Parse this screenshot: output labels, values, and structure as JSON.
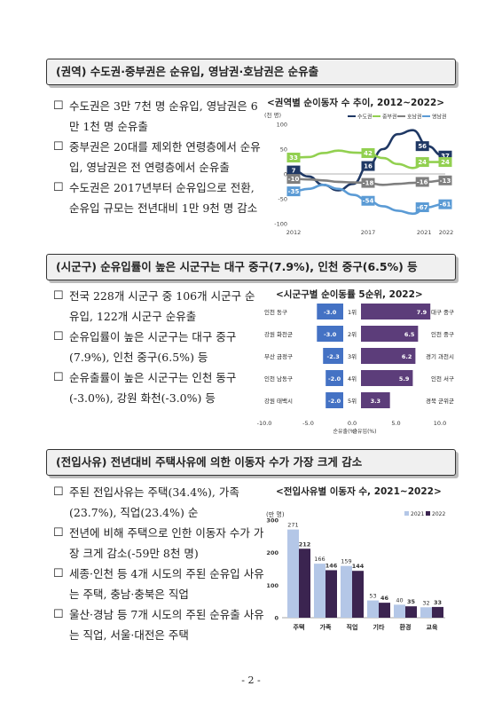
{
  "section1": {
    "title": "(권역) 수도권·중부권은 순유입, 영남권·호남권은 순유출",
    "bullets": [
      "수도권은 3만 7천 명 순유입, 영남권은 6만 1천 명 순유출",
      "중부권은 20대를 제외한 연령층에서 순유입, 영남권은 전 연령층에서 순유출",
      "수도권은 2017년부터 순유입으로 전환, 순유입 규모는 전년대비 1만 9천 명 감소"
    ]
  },
  "section2": {
    "title": "(시군구) 순유입률이 높은 시군구는 대구 중구(7.9%), 인천 중구(6.5%) 등",
    "bullets": [
      "전국 228개 시군구 중 106개 시군구 순유입, 122개 시군구 순유출",
      "순유입률이 높은 시군구는 대구 중구(7.9%), 인천 중구(6.5%) 등",
      "순유출률이 높은 시군구는 인천 동구(-3.0%), 강원 화천(-3.0%) 등"
    ]
  },
  "section3": {
    "title": "(전입사유) 전년대비 주택사유에 의한 이동자 수가 가장 크게 감소",
    "bullets": [
      "주된 전입사유는 주택(34.4%), 가족(23.7%), 직업(23.4%) 순",
      "전년에 비해 주택으로 인한 이동자 수가 가장 크게 감소(-59만 8천 명)",
      "세종·인천 등 4개 시도의 주된 순유입 사유는 주택, 충남·충북은 직업",
      "울산·경남 등 7개 시도의 주된 순유출 사유는 직업, 서울·대전은 주택"
    ]
  },
  "page_number": "- 2 -",
  "chart_data": [
    {
      "type": "line",
      "title": "<권역별 순이동자 수 추이, 2012~2022>",
      "ylabel": "(천 명)",
      "x": [
        2012,
        2013,
        2014,
        2015,
        2016,
        2017,
        2018,
        2019,
        2020,
        2021,
        2022
      ],
      "x_tick_labels": [
        "2012",
        "2017",
        "2021",
        "2022"
      ],
      "ylim": [
        -100,
        100
      ],
      "y_ticks": [
        -100,
        -50,
        0,
        50,
        100
      ],
      "series": [
        {
          "name": "수도권",
          "color": "#1f3864",
          "values": [
            7,
            -5,
            -22,
            -33,
            -20,
            16,
            50,
            80,
            88,
            56,
            37
          ],
          "labels": {
            "0": "7",
            "5": "16",
            "9": "56",
            "10": "37"
          }
        },
        {
          "name": "중부권",
          "color": "#92d050",
          "values": [
            33,
            34,
            42,
            47,
            43,
            42,
            32,
            20,
            12,
            24,
            24
          ],
          "labels": {
            "0": "33",
            "5": "42",
            "9": "24",
            "10": "24"
          }
        },
        {
          "name": "호남권",
          "color": "#7f7f7f",
          "values": [
            -10,
            -11,
            -13,
            -16,
            -17,
            -18,
            -22,
            -20,
            -18,
            -16,
            -13
          ],
          "labels": {
            "0": "-10",
            "5": "-18",
            "9": "-16",
            "10": "-13"
          }
        },
        {
          "name": "영남권",
          "color": "#5b9bd5",
          "values": [
            -35,
            -30,
            -22,
            -30,
            -42,
            -54,
            -65,
            -74,
            -80,
            -67,
            -61
          ],
          "labels": {
            "0": "-35",
            "5": "-54",
            "9": "-67",
            "10": "-61"
          }
        }
      ]
    },
    {
      "type": "bar",
      "title": "<시군구별 순이동률 5순위, 2022>",
      "xlim": [
        -10,
        10
      ],
      "x_ticks": [
        "-10.0",
        "-5.0",
        "0.0",
        "5.0",
        "10.0"
      ],
      "xlabel_left": "순유출(%)",
      "xlabel_right": "순유입(%)",
      "ranks": [
        "1위",
        "2위",
        "3위",
        "4위",
        "5위"
      ],
      "outflow": [
        {
          "name": "인천 동구",
          "value": -3.0,
          "label": "-3.0"
        },
        {
          "name": "강원 화천군",
          "value": -3.0,
          "label": "-3.0"
        },
        {
          "name": "부산 금정구",
          "value": -2.3,
          "label": "-2.3"
        },
        {
          "name": "인천 남동구",
          "value": -2.0,
          "label": "-2.0"
        },
        {
          "name": "강원 태백시",
          "value": -2.0,
          "label": "-2.0"
        }
      ],
      "inflow": [
        {
          "name": "대구 중구",
          "value": 7.9,
          "label": "7.9"
        },
        {
          "name": "인천 중구",
          "value": 6.5,
          "label": "6.5"
        },
        {
          "name": "경기 과천시",
          "value": 6.2,
          "label": "6.2"
        },
        {
          "name": "인천 서구",
          "value": 5.9,
          "label": "5.9"
        },
        {
          "name": "경북 군위군",
          "value": 3.3,
          "label": "3.3"
        }
      ],
      "colors": {
        "outflow": "#4472c4",
        "inflow": "#5c3d7a"
      }
    },
    {
      "type": "bar",
      "title": "<전입사유별 이동자 수, 2021~2022>",
      "ylabel": "(만 명)",
      "ylim": [
        0,
        300
      ],
      "y_ticks": [
        0,
        100,
        200,
        300
      ],
      "categories": [
        "주택",
        "가족",
        "직업",
        "기타",
        "환경",
        "교육"
      ],
      "series": [
        {
          "name": "2021",
          "color": "#b4c7e7",
          "values": [
            271,
            166,
            159,
            53,
            40,
            32
          ]
        },
        {
          "name": "2022",
          "color": "#3b2450",
          "values": [
            212,
            146,
            144,
            46,
            35,
            33
          ]
        }
      ]
    }
  ]
}
